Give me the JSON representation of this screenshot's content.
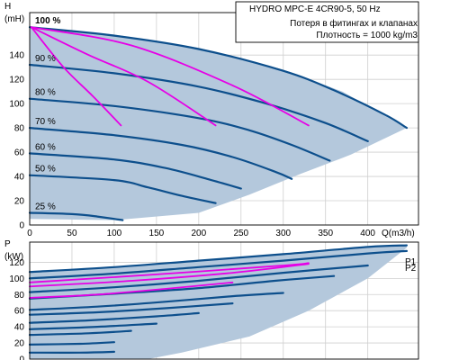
{
  "chart_data": [
    {
      "type": "line",
      "title": "HYDRO MPC-E 4CR90-5, 50 Hz",
      "annotations": [
        "Потеря в фитингах и клапанах",
        "Плотность = 1000 kg/m3"
      ],
      "ylabel_top": "H",
      "ylabel_unit": "(mH)",
      "xlabel": "Q(m3/h)",
      "xlim": [
        0,
        460
      ],
      "ylim": [
        0,
        175
      ],
      "x_ticks": [
        "0",
        "50",
        "100",
        "150",
        "200",
        "250",
        "300",
        "350",
        "400"
      ],
      "y_ticks": [
        "0",
        "20",
        "40",
        "60",
        "80",
        "100",
        "120",
        "140"
      ],
      "grid": true,
      "envelope": {
        "upper": [
          [
            0,
            163
          ],
          [
            100,
            157
          ],
          [
            200,
            146
          ],
          [
            300,
            128
          ],
          [
            370,
            110
          ],
          [
            420,
            90
          ],
          [
            446,
            80
          ]
        ],
        "lower": [
          [
            0,
            5
          ],
          [
            100,
            4
          ],
          [
            200,
            10
          ],
          [
            260,
            25
          ],
          [
            320,
            42
          ],
          [
            380,
            58
          ],
          [
            446,
            80
          ]
        ]
      },
      "series": [
        {
          "label": "100 %",
          "points": [
            [
              0,
              163
            ],
            [
              100,
              156
            ],
            [
              200,
              145
            ],
            [
              300,
              127
            ],
            [
              360,
              111
            ],
            [
              420,
              91
            ],
            [
              446,
              80
            ]
          ]
        },
        {
          "label": "90 %",
          "points": [
            [
              0,
              132
            ],
            [
              100,
              125
            ],
            [
              200,
              114
            ],
            [
              280,
              100
            ],
            [
              350,
              84
            ],
            [
              400,
              69
            ]
          ]
        },
        {
          "label": "80 %",
          "points": [
            [
              0,
              104
            ],
            [
              100,
              98
            ],
            [
              200,
              88
            ],
            [
              260,
              78
            ],
            [
              310,
              66
            ],
            [
              355,
              53
            ]
          ]
        },
        {
          "label": "70 %",
          "points": [
            [
              0,
              80
            ],
            [
              100,
              74
            ],
            [
              180,
              66
            ],
            [
              240,
              56
            ],
            [
              290,
              44
            ],
            [
              310,
              38
            ]
          ]
        },
        {
          "label": "60 %",
          "points": [
            [
              0,
              59
            ],
            [
              100,
              54
            ],
            [
              160,
              47
            ],
            [
              210,
              38
            ],
            [
              250,
              30
            ]
          ]
        },
        {
          "label": "50 %",
          "points": [
            [
              0,
              41
            ],
            [
              100,
              37
            ],
            [
              140,
              31
            ],
            [
              180,
              24
            ],
            [
              220,
              18
            ]
          ]
        },
        {
          "label": "25 %",
          "points": [
            [
              0,
              10
            ],
            [
              50,
              9
            ],
            [
              80,
              7
            ],
            [
              110,
              4
            ]
          ]
        }
      ],
      "system_curves": [
        [
          [
            2,
            163
          ],
          [
            40,
            130
          ],
          [
            75,
            106
          ],
          [
            108,
            82
          ]
        ],
        [
          [
            2,
            163
          ],
          [
            70,
            140
          ],
          [
            140,
            118
          ],
          [
            220,
            82
          ]
        ],
        [
          [
            2,
            163
          ],
          [
            120,
            148
          ],
          [
            240,
            115
          ],
          [
            330,
            82
          ]
        ]
      ]
    },
    {
      "type": "line",
      "ylabel_top": "P",
      "ylabel_unit": "(kW)",
      "xlim": [
        0,
        460
      ],
      "ylim": [
        0,
        145
      ],
      "y_ticks": [
        "0",
        "20",
        "40",
        "60",
        "80",
        "100",
        "120"
      ],
      "grid": true,
      "envelope": {
        "upper": [
          [
            0,
            108
          ],
          [
            100,
            114
          ],
          [
            200,
            122
          ],
          [
            300,
            130
          ],
          [
            400,
            139
          ],
          [
            446,
            141
          ]
        ],
        "lower": [
          [
            0,
            0
          ],
          [
            140,
            0
          ],
          [
            180,
            8
          ],
          [
            260,
            28
          ],
          [
            330,
            60
          ],
          [
            400,
            100
          ],
          [
            446,
            138
          ]
        ]
      },
      "series": [
        {
          "label": "P1",
          "points": [
            [
              0,
              108
            ],
            [
              100,
              114
            ],
            [
              200,
              122
            ],
            [
              300,
              130
            ],
            [
              400,
              139
            ],
            [
              446,
              141
            ]
          ]
        },
        {
          "label": "P2",
          "points": [
            [
              0,
              100
            ],
            [
              100,
              106
            ],
            [
              200,
              114
            ],
            [
              300,
              122
            ],
            [
              400,
              131
            ],
            [
              446,
              134
            ]
          ]
        },
        {
          "label": "",
          "points": [
            [
              0,
              83
            ],
            [
              100,
              89
            ],
            [
              200,
              97
            ],
            [
              300,
              107
            ],
            [
              400,
              116
            ]
          ]
        },
        {
          "label": "",
          "points": [
            [
              0,
              75
            ],
            [
              100,
              81
            ],
            [
              200,
              88
            ],
            [
              290,
              97
            ],
            [
              360,
              103
            ]
          ]
        },
        {
          "label": "",
          "points": [
            [
              0,
              61
            ],
            [
              80,
              65
            ],
            [
              160,
              71
            ],
            [
              240,
              78
            ],
            [
              300,
              82
            ]
          ]
        },
        {
          "label": "",
          "points": [
            [
              0,
              55
            ],
            [
              80,
              58
            ],
            [
              160,
              63
            ],
            [
              240,
              69
            ]
          ]
        },
        {
          "label": "",
          "points": [
            [
              0,
              45
            ],
            [
              70,
              48
            ],
            [
              150,
              53
            ],
            [
              200,
              57
            ]
          ]
        },
        {
          "label": "",
          "points": [
            [
              0,
              37
            ],
            [
              80,
              40
            ],
            [
              150,
              44
            ]
          ]
        },
        {
          "label": "",
          "points": [
            [
              0,
              30
            ],
            [
              70,
              32
            ],
            [
              120,
              35
            ]
          ]
        },
        {
          "label": "",
          "points": [
            [
              0,
              18
            ],
            [
              60,
              19
            ],
            [
              100,
              21
            ]
          ]
        },
        {
          "label": "",
          "points": [
            [
              0,
              8
            ],
            [
              60,
              8
            ],
            [
              100,
              9
            ]
          ]
        }
      ],
      "system_curves": [
        [
          [
            0,
            76
          ],
          [
            80,
            80
          ],
          [
            160,
            87
          ],
          [
            240,
            95
          ]
        ],
        [
          [
            0,
            90
          ],
          [
            120,
            97
          ],
          [
            240,
            107
          ],
          [
            330,
            118
          ]
        ],
        [
          [
            0,
            95
          ],
          [
            150,
            105
          ],
          [
            300,
            116
          ],
          [
            330,
            119
          ]
        ]
      ],
      "endpoint_labels": [
        "P1",
        "P2"
      ]
    }
  ]
}
